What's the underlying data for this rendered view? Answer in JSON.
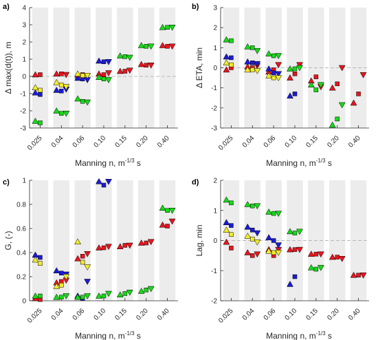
{
  "colors": {
    "red": "#e8141c",
    "blue": "#1b1bd6",
    "yellow": "#f3ec2a",
    "green": "#16d916",
    "band": "#ececec",
    "zero": "#b8b8b8",
    "axis": "#262626"
  },
  "chart_data": [
    {
      "panel_label": "a)",
      "type": "scatter",
      "xlabel": "Manning n, m",
      "xlabel_sup": "-1/3",
      "xlabel_tail": " s",
      "ylabel": "Δ max(d(t)), m",
      "categories": [
        "0.025",
        "0.04",
        "0.06",
        "0.10",
        "0.15",
        "0.20",
        "0.40"
      ],
      "ylim": [
        -3,
        4
      ],
      "yticks": [
        -3,
        -2,
        -1,
        0,
        1,
        2,
        3,
        4
      ],
      "series": [
        {
          "color": "red",
          "values": [
            [
              0.1,
              0.1,
              null
            ],
            [
              0.15,
              0.15,
              0.1
            ],
            [
              0.05,
              0.1,
              0.05
            ],
            [
              0.15,
              0.1,
              0.2
            ],
            [
              0.3,
              0.3,
              0.35
            ],
            [
              0.7,
              0.65,
              0.65
            ],
            [
              1.8,
              1.75,
              1.75
            ]
          ]
        },
        {
          "color": "blue",
          "values": [
            [
              -0.95,
              -1.05,
              null
            ],
            [
              -0.8,
              -0.85,
              -0.75
            ],
            [
              -0.1,
              -0.15,
              -0.2
            ],
            [
              0.9,
              0.85,
              0.85
            ],
            [
              null,
              null,
              null
            ],
            [
              null,
              null,
              null
            ],
            [
              null,
              null,
              null
            ]
          ]
        },
        {
          "color": "yellow",
          "values": [
            [
              -0.65,
              -0.8,
              null
            ],
            [
              -0.35,
              -0.5,
              -0.6
            ],
            [
              0.15,
              0.05,
              0.05
            ],
            [
              null,
              null,
              null
            ],
            [
              null,
              null,
              null
            ],
            [
              null,
              null,
              null
            ],
            [
              null,
              null,
              null
            ]
          ]
        },
        {
          "color": "green",
          "values": [
            [
              -2.6,
              -2.7,
              null
            ],
            [
              -2.0,
              -2.15,
              -2.15
            ],
            [
              -1.3,
              -1.45,
              -1.5
            ],
            [
              -0.05,
              -0.15,
              -0.2
            ],
            [
              1.2,
              1.15,
              1.1
            ],
            [
              1.8,
              1.75,
              1.75
            ],
            [
              2.85,
              2.85,
              2.85
            ]
          ]
        }
      ]
    },
    {
      "panel_label": "b)",
      "type": "scatter",
      "xlabel": "Manning n, m",
      "xlabel_sup": "-1/3",
      "xlabel_tail": " s",
      "ylabel": "Δ ETA, min",
      "categories": [
        "0.025",
        "0.04",
        "0.06",
        "0.10",
        "0.15",
        "0.20",
        "0.40"
      ],
      "ylim": [
        -3,
        3
      ],
      "yticks": [
        -3,
        -2,
        -1,
        0,
        1,
        2,
        3
      ],
      "series": [
        {
          "color": "red",
          "values": [
            [
              -0.1,
              0.0,
              null
            ],
            [
              0.05,
              0.0,
              0.1
            ],
            [
              -0.2,
              -0.1,
              0.15
            ],
            [
              -0.5,
              -0.3,
              0.15
            ],
            [
              -0.65,
              -0.45,
              -0.95
            ],
            [
              -1.0,
              -0.8,
              0.0
            ],
            [
              -1.75,
              -1.3,
              -0.35
            ]
          ]
        },
        {
          "color": "blue",
          "values": [
            [
              0.55,
              0.5,
              null
            ],
            [
              0.3,
              0.25,
              0.2
            ],
            [
              -0.05,
              -0.25,
              -0.3
            ],
            [
              -1.4,
              -1.3,
              null
            ],
            [
              null,
              null,
              null
            ],
            [
              null,
              null,
              null
            ],
            [
              null,
              null,
              null
            ]
          ]
        },
        {
          "color": "yellow",
          "values": [
            [
              0.25,
              0.15,
              null
            ],
            [
              -0.1,
              -0.1,
              -0.15
            ],
            [
              -0.4,
              -0.5,
              -0.5
            ],
            [
              null,
              null,
              null
            ],
            [
              null,
              null,
              null
            ],
            [
              null,
              null,
              null
            ],
            [
              null,
              null,
              null
            ]
          ]
        },
        {
          "color": "green",
          "values": [
            [
              1.4,
              1.35,
              null
            ],
            [
              1.05,
              1.0,
              0.85
            ],
            [
              0.7,
              0.6,
              0.6
            ],
            [
              -0.05,
              -0.05,
              0.0
            ],
            [
              -0.85,
              -1.1,
              -0.85
            ],
            [
              -2.85,
              -2.55,
              -1.85
            ],
            [
              null,
              null,
              null
            ]
          ]
        }
      ]
    },
    {
      "panel_label": "c)",
      "type": "scatter",
      "xlabel": "Manning n, m",
      "xlabel_sup": "-1/3",
      "xlabel_tail": " s",
      "ylabel": "G, (-)",
      "categories": [
        "0.025",
        "0.04",
        "0.06",
        "0.10",
        "0.15",
        "0.20",
        "0.40"
      ],
      "ylim": [
        0,
        1
      ],
      "yticks": [
        0,
        0.2,
        0.4,
        0.6,
        0.8,
        1
      ],
      "series": [
        {
          "color": "red",
          "values": [
            [
              0.02,
              0.01,
              null
            ],
            [
              0.15,
              0.16,
              0.17
            ],
            [
              0.35,
              0.37,
              0.39
            ],
            [
              0.44,
              0.44,
              0.45
            ],
            [
              0.45,
              0.46,
              0.46
            ],
            [
              0.48,
              0.48,
              0.49
            ],
            [
              0.63,
              0.62,
              0.66
            ]
          ]
        },
        {
          "color": "blue",
          "values": [
            [
              0.38,
              0.36,
              null
            ],
            [
              0.25,
              0.23,
              0.22
            ],
            [
              0.04,
              0.02,
              0.16
            ],
            [
              0.99,
              0.96,
              0.99
            ],
            [
              null,
              null,
              null
            ],
            [
              null,
              null,
              null
            ],
            [
              null,
              null,
              null
            ]
          ]
        },
        {
          "color": "yellow",
          "values": [
            [
              0.34,
              0.31,
              null
            ],
            [
              0.12,
              0.13,
              0.2
            ],
            [
              0.49,
              0.32,
              0.28
            ],
            [
              null,
              null,
              null
            ],
            [
              null,
              null,
              null
            ],
            [
              null,
              null,
              null
            ],
            [
              null,
              null,
              null
            ]
          ]
        },
        {
          "color": "green",
          "values": [
            [
              0.04,
              0.04,
              null
            ],
            [
              0.03,
              0.03,
              0.04
            ],
            [
              0.03,
              0.03,
              0.04
            ],
            [
              0.04,
              0.04,
              0.06
            ],
            [
              0.05,
              0.06,
              0.07
            ],
            [
              0.08,
              0.09,
              0.1
            ],
            [
              0.77,
              0.75,
              0.75
            ]
          ]
        }
      ]
    },
    {
      "panel_label": "d)",
      "type": "scatter",
      "xlabel": "Manning n, m",
      "xlabel_sup": "-1/3",
      "xlabel_tail": " s",
      "ylabel": "Lag, min",
      "categories": [
        "0.025",
        "0.04",
        "0.06",
        "0.10",
        "0.15",
        "0.20",
        "0.40"
      ],
      "ylim": [
        -2,
        2
      ],
      "yticks": [
        -2,
        -1,
        0,
        1,
        2
      ],
      "series": [
        {
          "color": "red",
          "values": [
            [
              -0.05,
              -0.25,
              null
            ],
            [
              -0.4,
              -0.5,
              -0.45
            ],
            [
              -0.3,
              -0.5,
              -0.3
            ],
            [
              -0.3,
              -0.3,
              -0.3
            ],
            [
              -0.45,
              -0.45,
              -0.45
            ],
            [
              -0.55,
              -0.55,
              -0.6
            ],
            [
              -1.15,
              -1.15,
              -1.15
            ]
          ]
        },
        {
          "color": "blue",
          "values": [
            [
              0.6,
              0.5,
              null
            ],
            [
              0.45,
              0.35,
              0.25
            ],
            [
              0.1,
              0.0,
              -0.15
            ],
            [
              -1.45,
              -1.2,
              null
            ],
            [
              null,
              null,
              null
            ],
            [
              null,
              null,
              null
            ],
            [
              null,
              null,
              null
            ]
          ]
        },
        {
          "color": "yellow",
          "values": [
            [
              0.35,
              0.2,
              null
            ],
            [
              0.15,
              0.05,
              -0.05
            ],
            [
              -0.35,
              -0.4,
              -0.4
            ],
            [
              null,
              null,
              null
            ],
            [
              null,
              null,
              null
            ],
            [
              null,
              null,
              null
            ],
            [
              null,
              null,
              null
            ]
          ]
        },
        {
          "color": "green",
          "values": [
            [
              1.35,
              1.25,
              null
            ],
            [
              1.2,
              1.15,
              1.15
            ],
            [
              0.95,
              0.9,
              0.9
            ],
            [
              0.3,
              0.25,
              0.3
            ],
            [
              -0.9,
              -0.95,
              -0.9
            ],
            [
              null,
              null,
              null
            ],
            [
              null,
              null,
              null
            ]
          ]
        }
      ]
    }
  ]
}
